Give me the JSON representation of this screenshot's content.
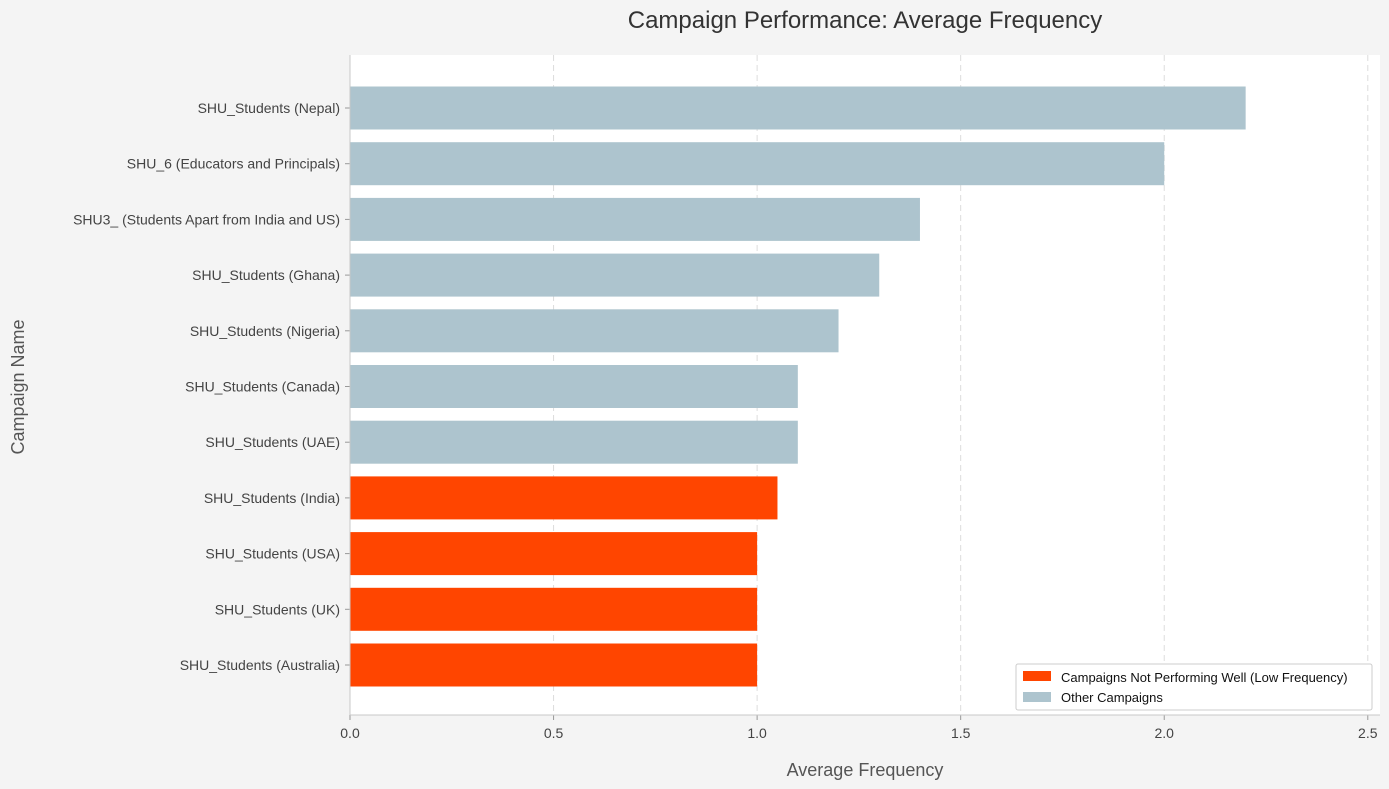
{
  "chart_data": {
    "type": "bar",
    "orientation": "horizontal",
    "title": "Campaign Performance: Average Frequency",
    "xlabel": "Average Frequency",
    "ylabel": "Campaign Name",
    "xlim": [
      0,
      2.53
    ],
    "xticks": [
      0.0,
      0.5,
      1.0,
      1.5,
      2.0,
      2.5
    ],
    "xtick_labels": [
      "0.0",
      "0.5",
      "1.0",
      "1.5",
      "2.0",
      "2.5"
    ],
    "grid": "x-dashed",
    "legend_position": "bottom-right",
    "categories": [
      "SHU_Students (Nepal)",
      "SHU_6 (Educators and Principals)",
      "SHU3_ (Students Apart from India and US)",
      "SHU_Students (Ghana)",
      "SHU_Students (Nigeria)",
      "SHU_Students (Canada)",
      "SHU_Students (UAE)",
      "SHU_Students (India)",
      "SHU_Students (USA)",
      "SHU_Students (UK)",
      "SHU_Students (Australia)"
    ],
    "values": [
      2.2,
      2.0,
      1.4,
      1.3,
      1.2,
      1.1,
      1.1,
      1.05,
      1.0,
      1.0,
      1.0
    ],
    "groups": [
      "other",
      "other",
      "other",
      "other",
      "other",
      "other",
      "other",
      "low",
      "low",
      "low",
      "low"
    ],
    "legend": [
      {
        "key": "low",
        "label": "Campaigns Not Performing Well (Low Frequency)",
        "color": "#ff4500"
      },
      {
        "key": "other",
        "label": "Other Campaigns",
        "color": "#adc4ce"
      }
    ]
  }
}
